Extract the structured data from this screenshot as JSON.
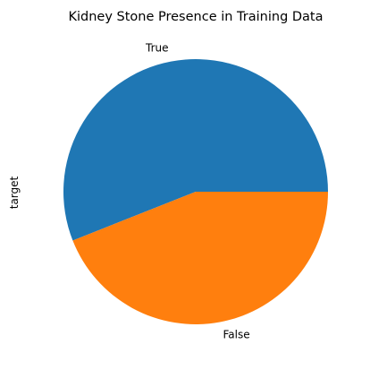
{
  "chart_data": {
    "type": "pie",
    "title": "Kidney Stone Presence in Training Data",
    "ylabel": "target",
    "xlabel": "",
    "categories": [
      "True",
      "False"
    ],
    "values": [
      56,
      44
    ],
    "colors": [
      "#1f77b4",
      "#ff7f0e"
    ],
    "legend": "none",
    "grid": false
  }
}
